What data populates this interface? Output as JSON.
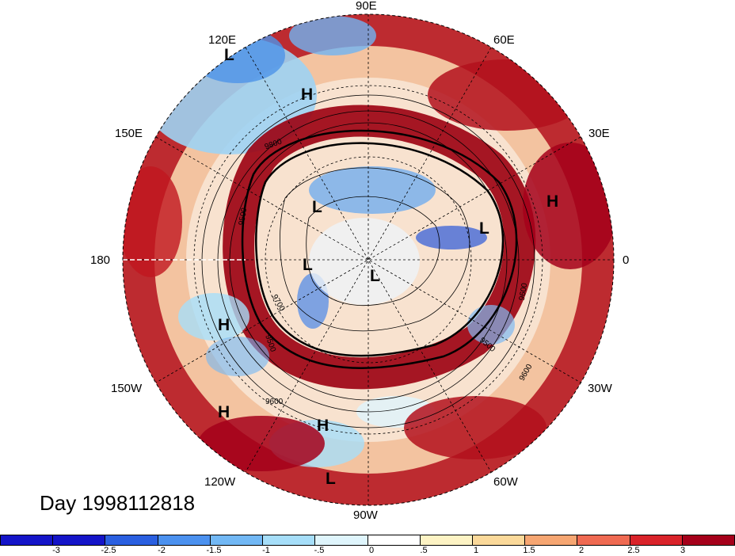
{
  "title": "Day 1998112818",
  "longitude_labels": [
    "90E",
    "60E",
    "30E",
    "0",
    "30W",
    "60W",
    "90W",
    "120W",
    "150W",
    "180",
    "150E",
    "120E"
  ],
  "pressure_centers": [
    "L",
    "H",
    "L",
    "L",
    "H",
    "L",
    "L",
    "H",
    "H",
    "H",
    "L"
  ],
  "contour_labels": [
    "9500",
    "9600",
    "9500",
    "9600",
    "9500",
    "9600",
    "9700",
    "9800"
  ],
  "colorbar": {
    "ticks": [
      "-3",
      "-2.5",
      "-2",
      "-1.5",
      "-1",
      "-.5",
      "0",
      ".5",
      "1",
      "1.5",
      "2",
      "2.5",
      "3"
    ],
    "colors": [
      "#1414c8",
      "#2a5fe0",
      "#4b91ef",
      "#72b8f5",
      "#a6def9",
      "#dff5fc",
      "#ffffff",
      "#fdf3c4",
      "#fbd99a",
      "#f6a672",
      "#ef6a52",
      "#d9232a",
      "#a5001a"
    ]
  }
}
